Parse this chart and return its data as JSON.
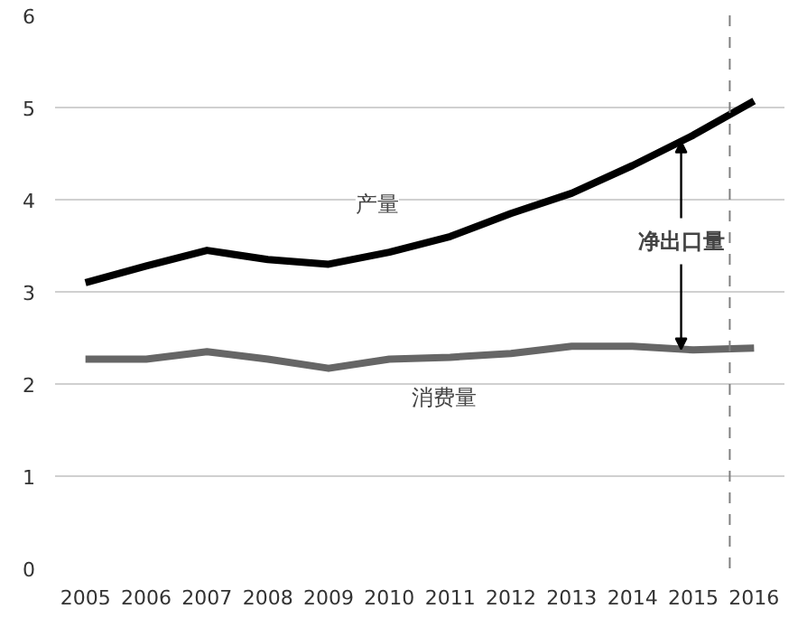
{
  "chart_data": {
    "type": "line",
    "x": [
      2005,
      2006,
      2007,
      2008,
      2009,
      2010,
      2011,
      2012,
      2013,
      2014,
      2015,
      2016
    ],
    "xlim": [
      2004.5,
      2016.5
    ],
    "xticks": [
      2005,
      2006,
      2007,
      2008,
      2009,
      2010,
      2011,
      2012,
      2013,
      2014,
      2015,
      2016
    ],
    "ylim": [
      0,
      6
    ],
    "yticks": [
      0,
      1,
      2,
      3,
      4,
      5,
      6
    ],
    "grid": "y",
    "marker": "none",
    "line_style": "solid",
    "series": [
      {
        "name": "产量",
        "color": "#000000",
        "values": [
          3.1,
          3.28,
          3.45,
          3.35,
          3.3,
          3.43,
          3.6,
          3.85,
          4.07,
          4.37,
          4.7,
          5.07
        ]
      },
      {
        "name": "消费量",
        "color": "#666666",
        "values": [
          2.27,
          2.27,
          2.35,
          2.27,
          2.17,
          2.27,
          2.29,
          2.33,
          2.41,
          2.41,
          2.37,
          2.39
        ]
      }
    ],
    "ref_lines": [
      {
        "axis": "x",
        "value": 2015.6,
        "label": null,
        "color": "#808080",
        "line_style": "dashed"
      }
    ],
    "annotations": [
      {
        "text": "净出口量",
        "x": 2014.8,
        "y": 4.63
      }
    ]
  }
}
